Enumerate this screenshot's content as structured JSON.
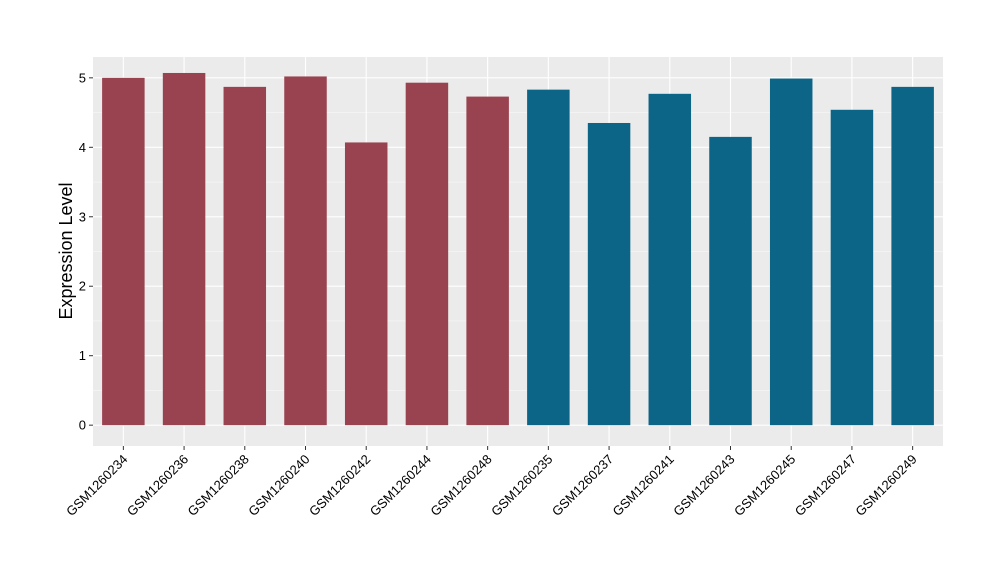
{
  "chart_data": {
    "type": "bar",
    "title": "",
    "xlabel": "",
    "ylabel": "Expression Level",
    "ylim": [
      -0.3,
      5.3
    ],
    "yticks": [
      0,
      1,
      2,
      3,
      4,
      5
    ],
    "grid": true,
    "categories": [
      "GSM1260234",
      "GSM1260236",
      "GSM1260238",
      "GSM1260240",
      "GSM1260242",
      "GSM1260244",
      "GSM1260248",
      "GSM1260235",
      "GSM1260237",
      "GSM1260241",
      "GSM1260243",
      "GSM1260245",
      "GSM1260247",
      "GSM1260249"
    ],
    "values": [
      5.0,
      5.07,
      4.87,
      5.02,
      4.07,
      4.93,
      4.73,
      4.83,
      4.35,
      4.77,
      4.15,
      4.99,
      4.54,
      4.87
    ],
    "group_of_each_bar": [
      0,
      0,
      0,
      0,
      0,
      0,
      0,
      1,
      1,
      1,
      1,
      1,
      1,
      1
    ],
    "group_colors": [
      "#994350",
      "#0c6586"
    ],
    "panel_background": "#ebebeb",
    "grid_color": "#ffffff"
  }
}
